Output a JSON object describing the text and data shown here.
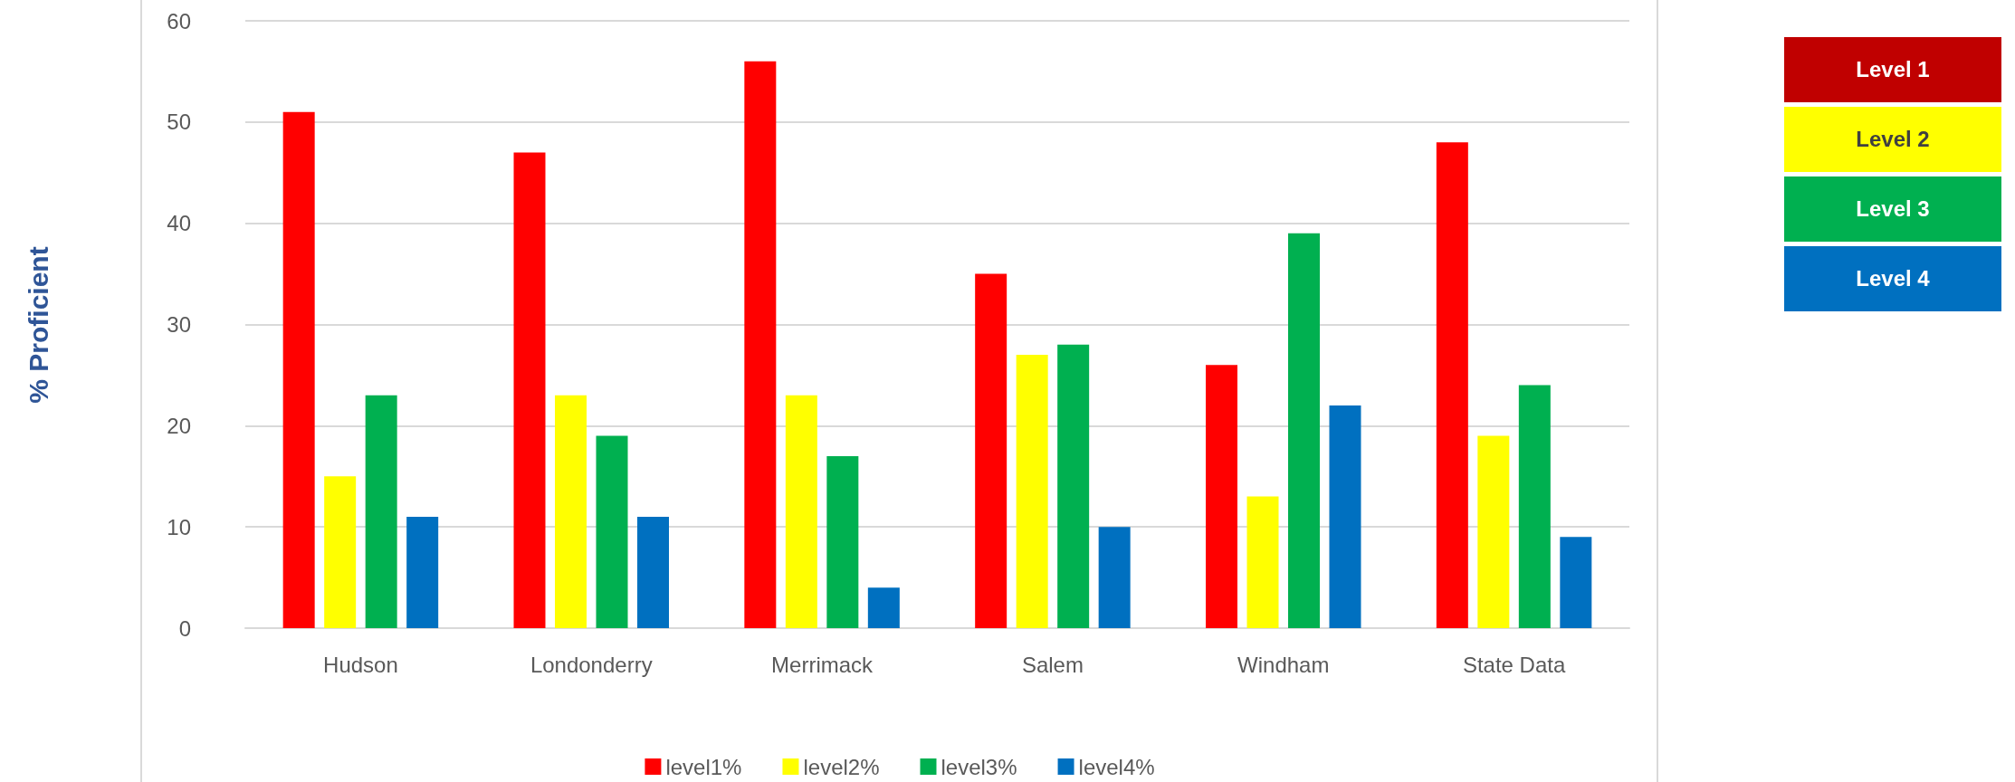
{
  "chart_data": [
    {
      "type": "bar",
      "ylabel": "% Proficient",
      "categories": [
        "Hudson",
        "Londonderry",
        "Merrimack",
        "Salem",
        "Windham",
        "State Data"
      ],
      "series": [
        {
          "name": "level1%",
          "color": "#ff0000",
          "values": [
            51,
            47,
            56,
            35,
            26,
            48
          ]
        },
        {
          "name": "level2%",
          "color": "#ffff00",
          "values": [
            15,
            23,
            23,
            27,
            13,
            19
          ]
        },
        {
          "name": "level3%",
          "color": "#00b050",
          "values": [
            23,
            19,
            17,
            28,
            39,
            24
          ]
        },
        {
          "name": "level4%",
          "color": "#0070c0",
          "values": [
            11,
            11,
            4,
            10,
            22,
            9
          ]
        }
      ],
      "ylim": [
        0,
        60
      ],
      "yticks": [
        0,
        10,
        20,
        30,
        40,
        50,
        60
      ],
      "grid": "y",
      "legend": "bottom"
    },
    {
      "type": "other",
      "categories": [
        "Level 1",
        "Level 2",
        "Level 3",
        "Level 4"
      ],
      "colors": [
        "#c00000",
        "#ffff00",
        "#00b050",
        "#0070c0"
      ]
    }
  ]
}
